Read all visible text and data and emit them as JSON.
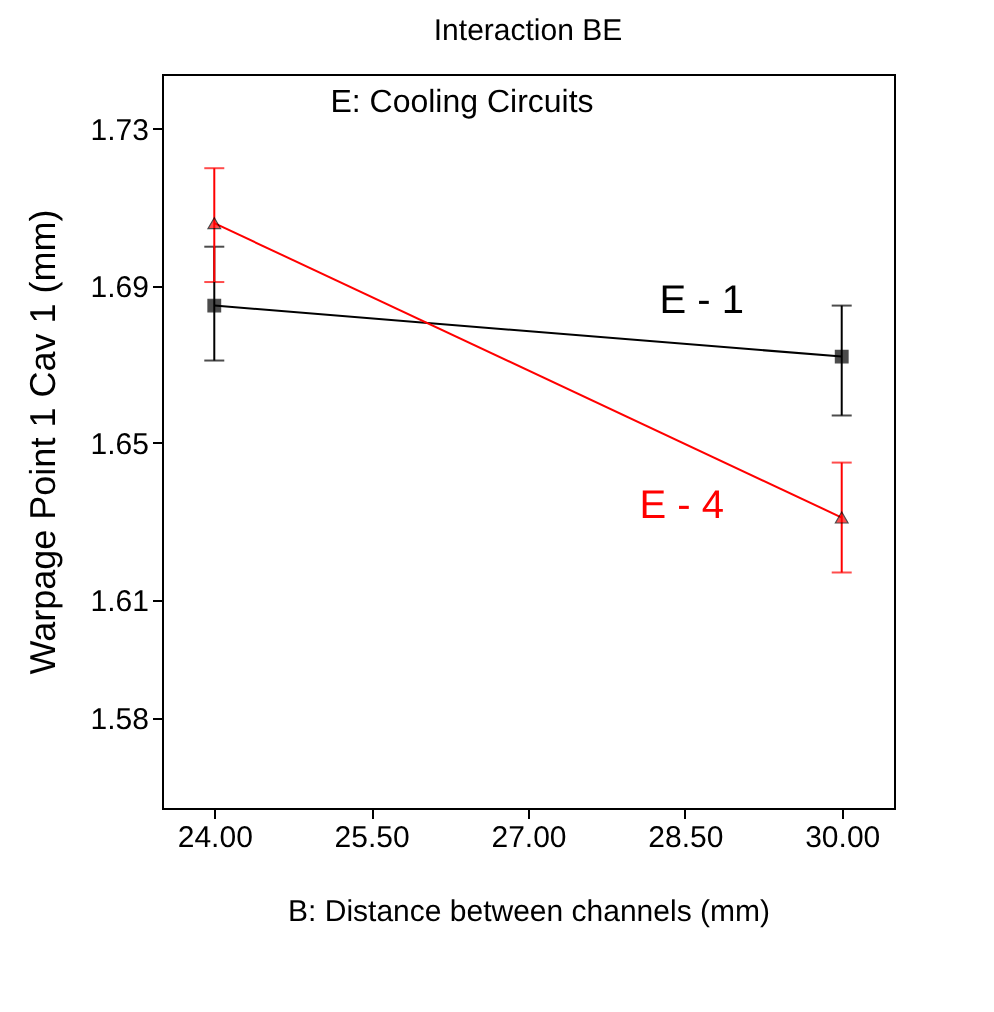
{
  "chart_data": {
    "type": "line",
    "title": "Interaction BE",
    "xlabel": "B: Distance between channels (mm)",
    "ylabel": "Warpage Point 1 Cav 1 (mm)",
    "annotations": [
      "E:  Cooling Circuits"
    ],
    "x": [
      24,
      30
    ],
    "series": [
      {
        "name": "E - 1",
        "color": "#000000",
        "marker": "square",
        "values": [
          1.685,
          1.672
        ],
        "errors": [
          [
            1.671,
            1.7
          ],
          [
            1.657,
            1.685
          ]
        ]
      },
      {
        "name": "E - 4",
        "color": "#ff0000",
        "marker": "triangle",
        "values": [
          1.706,
          1.631
        ],
        "errors": [
          [
            1.691,
            1.72
          ],
          [
            1.617,
            1.645
          ]
        ]
      }
    ],
    "xlim": [
      23.5,
      30.5
    ],
    "xticks": [
      {
        "value": 24,
        "label": "24.00"
      },
      {
        "value": 25.5,
        "label": "25.50"
      },
      {
        "value": 27,
        "label": "27.00"
      },
      {
        "value": 28.5,
        "label": "28.50"
      },
      {
        "value": 30,
        "label": "30.00"
      }
    ],
    "ylim": [
      1.557,
      1.744
    ],
    "yticks": [
      1.73,
      1.69,
      1.65,
      1.61,
      1.58
    ],
    "grid": false,
    "legend": false
  }
}
